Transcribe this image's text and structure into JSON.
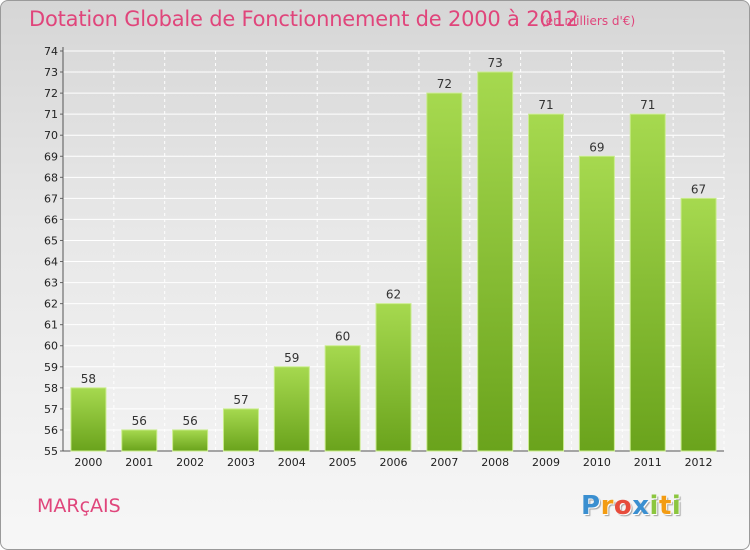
{
  "header": {
    "title": "Dotation Globale de Fonctionnement de 2000 à 2012",
    "unit": "(en milliers d'€)"
  },
  "commune": "MARçAIS",
  "logo": {
    "letters": [
      {
        "ch": "P",
        "color": "#3a8fd0"
      },
      {
        "ch": "r",
        "color": "#f39c12"
      },
      {
        "ch": "o",
        "color": "#e74c3c"
      },
      {
        "ch": "x",
        "color": "#3a8fd0"
      },
      {
        "ch": "i",
        "color": "#8cc63f"
      },
      {
        "ch": "t",
        "color": "#f39c12"
      },
      {
        "ch": "i",
        "color": "#8cc63f"
      }
    ]
  },
  "colors": {
    "accent": "#e0457b",
    "bar_light": "#a6d94f",
    "bar_dark": "#6aa31c",
    "grid": "#ffffff"
  },
  "chart_data": {
    "type": "bar",
    "categories": [
      "2000",
      "2001",
      "2002",
      "2003",
      "2004",
      "2005",
      "2006",
      "2007",
      "2008",
      "2009",
      "2010",
      "2011",
      "2012"
    ],
    "values": [
      58,
      56,
      56,
      57,
      59,
      60,
      62,
      72,
      73,
      71,
      69,
      71,
      67
    ],
    "ylim": [
      55,
      74
    ],
    "yticks": [
      55,
      56,
      57,
      58,
      59,
      60,
      61,
      62,
      63,
      64,
      65,
      66,
      67,
      68,
      69,
      70,
      71,
      72,
      73,
      74
    ],
    "grid": true,
    "data_labels": true
  }
}
